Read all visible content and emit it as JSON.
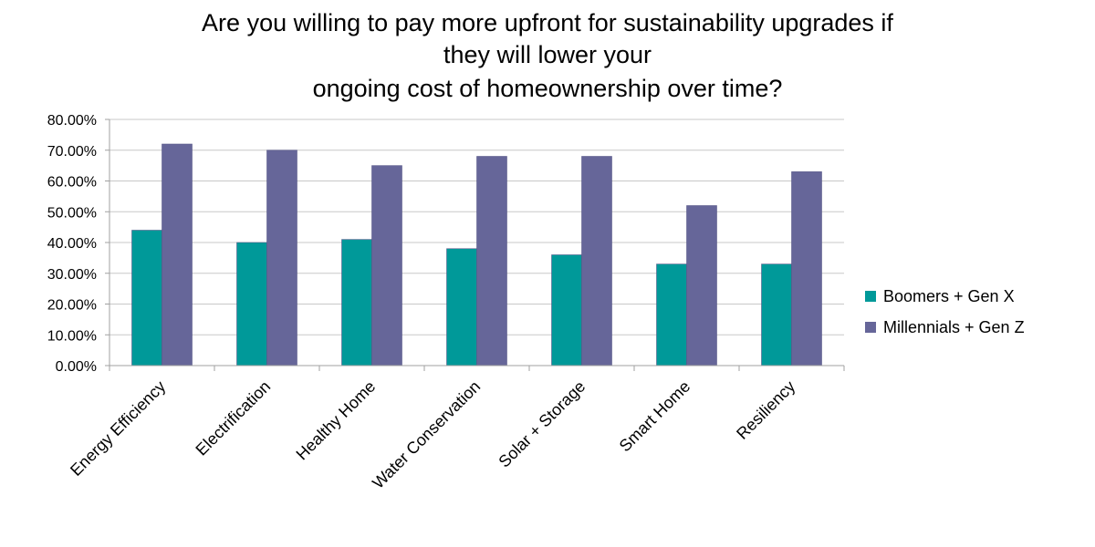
{
  "chart_data": {
    "type": "bar",
    "title_lines": [
      "Are you willing to pay more upfront for sustainability upgrades if",
      "they will lower your",
      "ongoing cost of homeownership over time?"
    ],
    "categories": [
      "Energy Efficiency",
      "Electrification",
      "Healthy Home",
      "Water Conservation",
      "Solar + Storage",
      "Smart Home",
      "Resiliency"
    ],
    "series": [
      {
        "name": "Boomers + Gen X",
        "color": "#009999",
        "values": [
          0.44,
          0.4,
          0.41,
          0.38,
          0.36,
          0.33,
          0.33
        ]
      },
      {
        "name": "Millennials + Gen Z",
        "color": "#666699",
        "values": [
          0.72,
          0.7,
          0.65,
          0.68,
          0.68,
          0.52,
          0.63
        ]
      }
    ],
    "ylim": [
      0,
      0.8
    ],
    "yticks": [
      "0.00%",
      "10.00%",
      "20.00%",
      "30.00%",
      "40.00%",
      "50.00%",
      "60.00%",
      "70.00%",
      "80.00%"
    ],
    "grid": true,
    "legend_position": "right"
  }
}
